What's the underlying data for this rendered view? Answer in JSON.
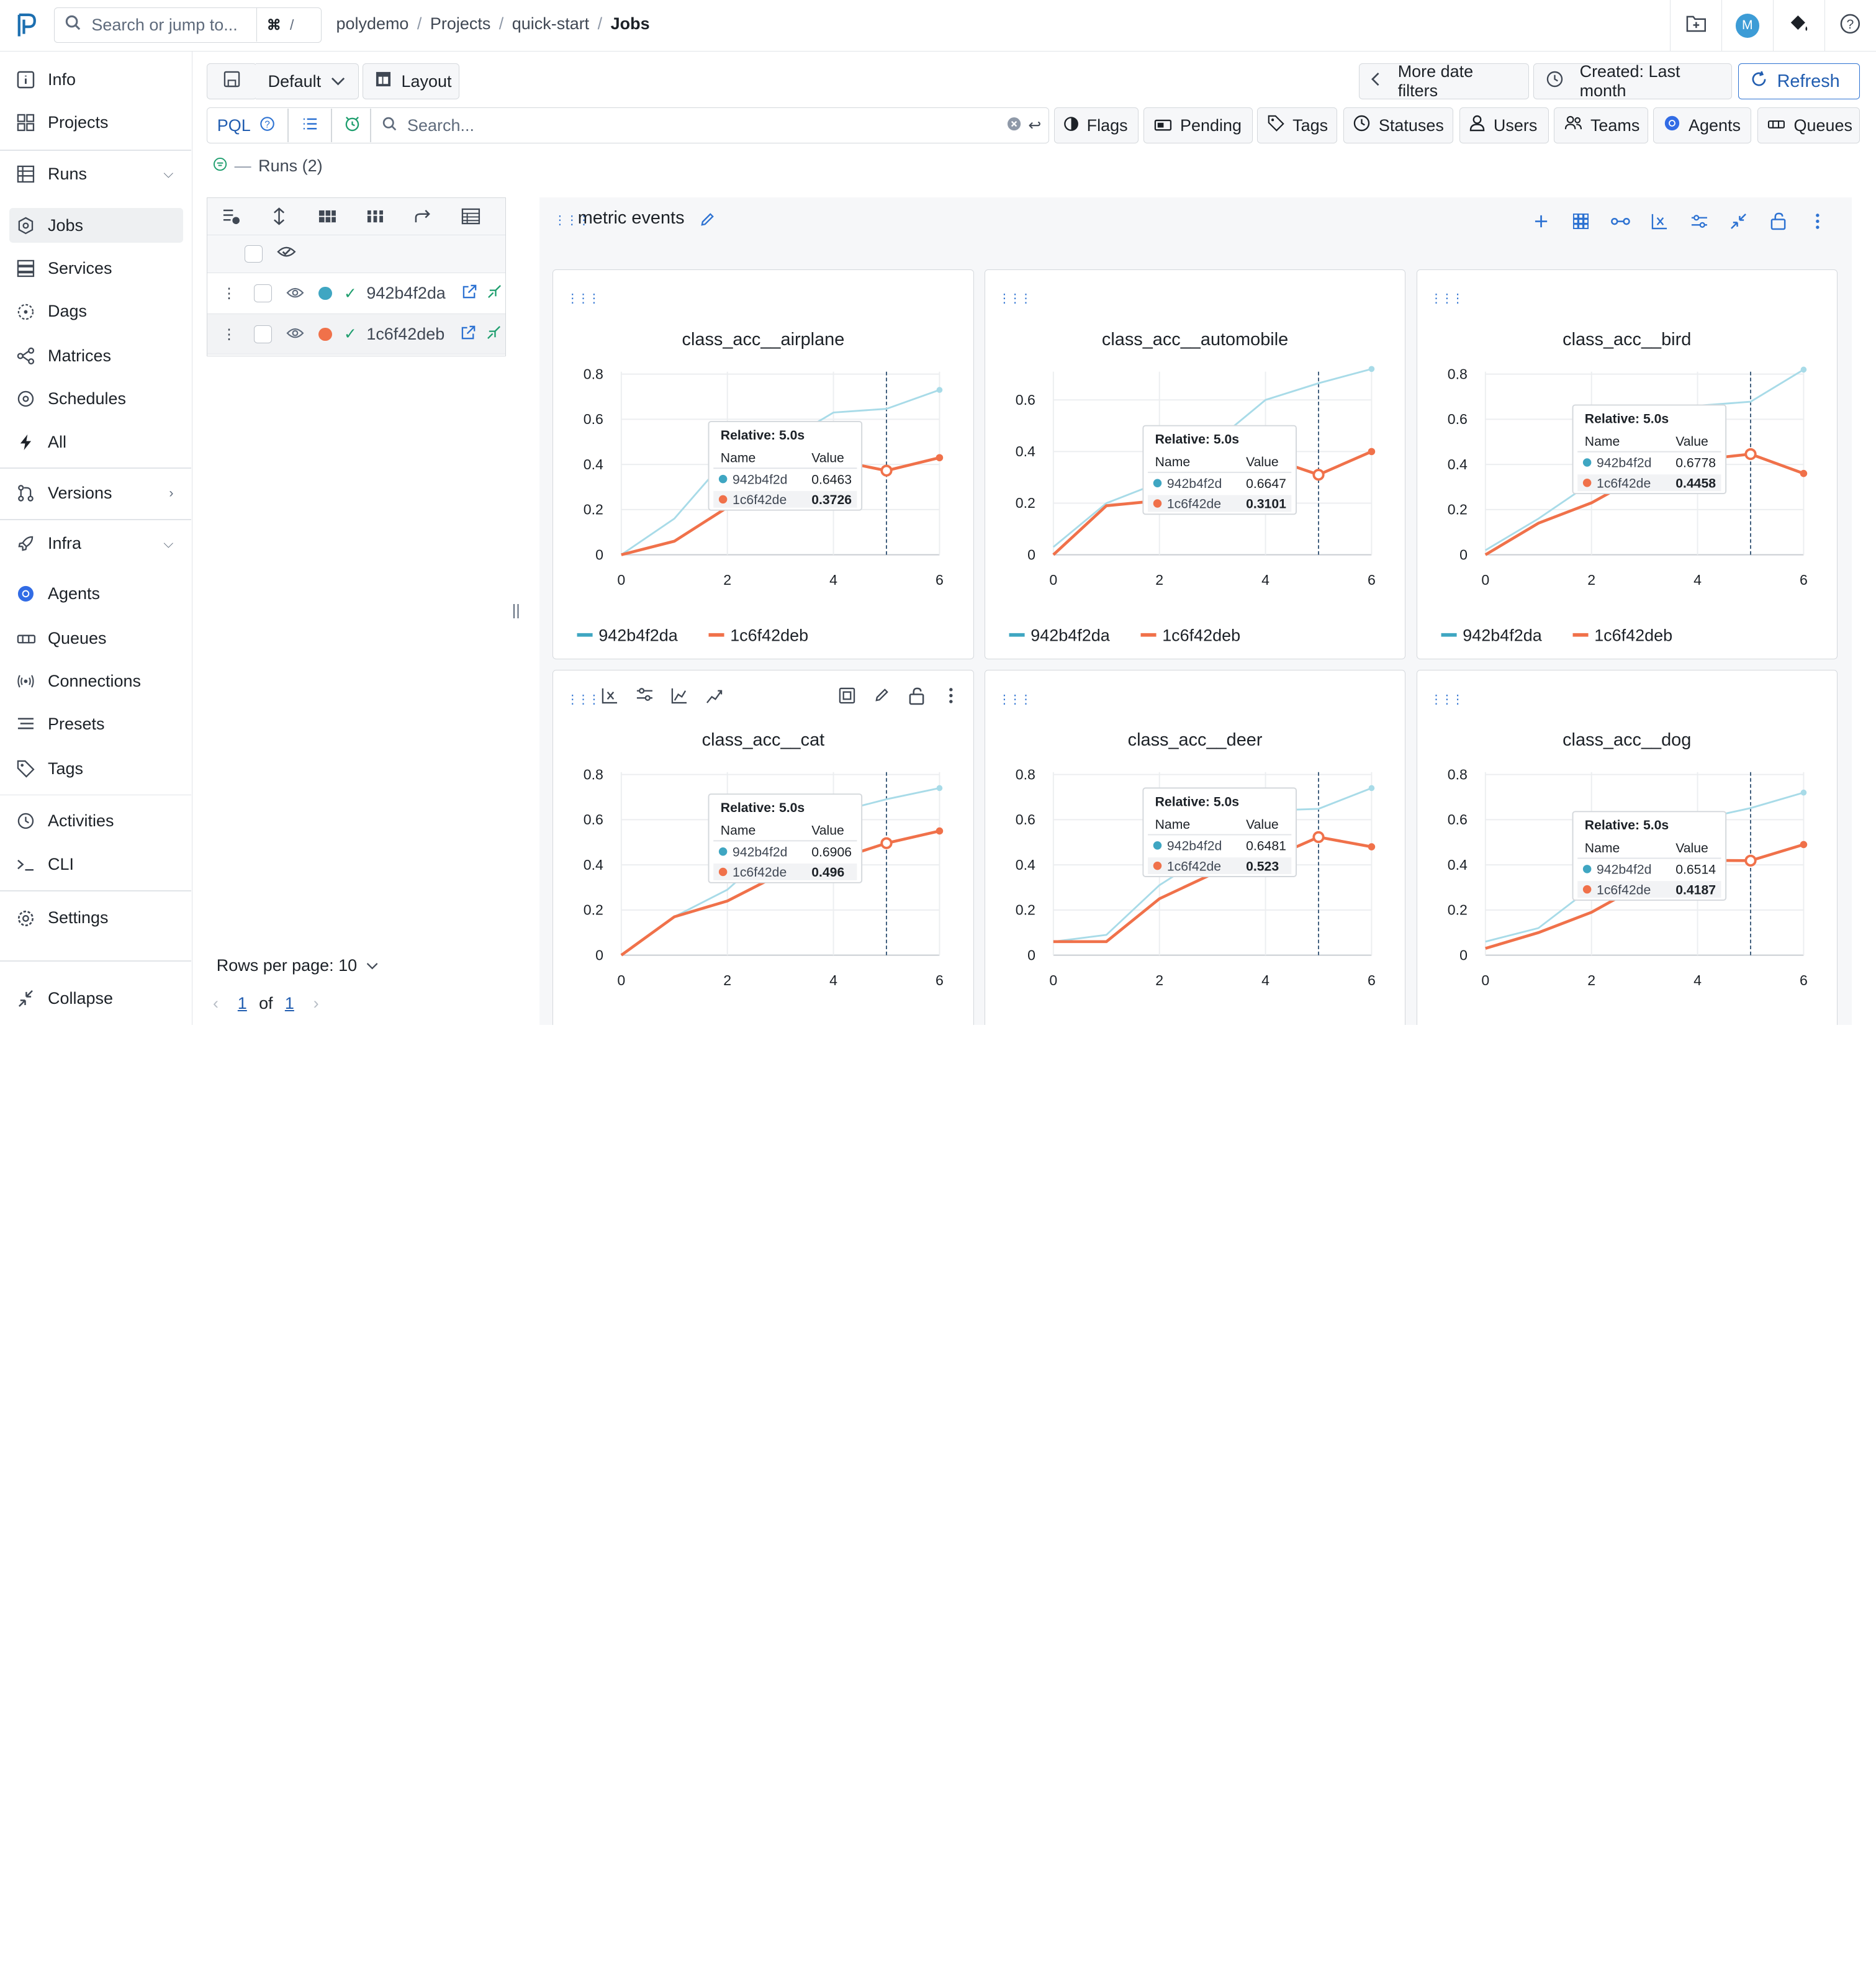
{
  "topbar": {
    "search_placeholder": "Search or jump to...",
    "kbd": "⌘",
    "kbd2": "/",
    "breadcrumb": [
      "polydemo",
      "Projects",
      "quick-start",
      "Jobs"
    ],
    "avatar_initial": "M"
  },
  "sidebar": {
    "items": [
      {
        "label": "Info",
        "icon": "info-icon"
      },
      {
        "label": "Projects",
        "icon": "grid-icon"
      },
      {
        "label": "Runs",
        "icon": "table-icon"
      },
      {
        "label": "Jobs",
        "icon": "job-icon"
      },
      {
        "label": "Services",
        "icon": "services-icon"
      },
      {
        "label": "Dags",
        "icon": "dag-icon"
      },
      {
        "label": "Matrices",
        "icon": "matrix-icon"
      },
      {
        "label": "Schedules",
        "icon": "schedule-icon"
      },
      {
        "label": "All",
        "icon": "lightning-icon"
      },
      {
        "label": "Versions",
        "icon": "git-icon"
      },
      {
        "label": "Infra",
        "icon": "rocket-icon"
      },
      {
        "label": "Agents",
        "icon": "agent-icon"
      },
      {
        "label": "Queues",
        "icon": "queue-icon"
      },
      {
        "label": "Connections",
        "icon": "connections-icon"
      },
      {
        "label": "Presets",
        "icon": "presets-icon"
      },
      {
        "label": "Tags",
        "icon": "tag-icon"
      },
      {
        "label": "Activities",
        "icon": "history-icon"
      },
      {
        "label": "CLI",
        "icon": "terminal-icon"
      },
      {
        "label": "Settings",
        "icon": "settings-icon"
      },
      {
        "label": "Collapse",
        "icon": "collapse-icon"
      }
    ]
  },
  "header": {
    "default_label": "Default",
    "layout_label": "Layout",
    "more_date_filters": "More date filters",
    "created_filter": "Created: Last month",
    "refresh": "Refresh"
  },
  "filters": {
    "pql": "PQL",
    "search_placeholder": "Search...",
    "buttons": [
      "Flags",
      "Pending",
      "Tags",
      "Statuses",
      "Users",
      "Teams",
      "Agents",
      "Queues"
    ]
  },
  "runs": {
    "label": "Runs (2)",
    "rows": [
      {
        "uuid": "942b4f2da",
        "color": "#3fa6c2"
      },
      {
        "uuid": "1c6f42deb",
        "color": "#f0714a"
      }
    ],
    "rows_per_page": "Rows per page: 10",
    "page": "1",
    "of": "of",
    "total_pages": "1"
  },
  "dashboard": {
    "title": "metric events"
  },
  "colors": {
    "series1": "#a8dbe8",
    "series1_dot": "#3fa6c2",
    "series2": "#f0714a",
    "accent": "#2d72d2"
  },
  "chart_data": [
    {
      "type": "line",
      "title": "class_acc__airplane",
      "x": [
        0,
        1,
        2,
        3,
        4,
        5,
        6
      ],
      "ylim": [
        0,
        0.8
      ],
      "yticks": [
        0,
        0.2,
        0.4,
        0.6,
        0.8
      ],
      "xticks": [
        0,
        2,
        4,
        6
      ],
      "series": [
        {
          "name": "942b4f2da",
          "values": [
            0.0,
            0.16,
            0.43,
            0.49,
            0.63,
            0.6463,
            0.73
          ]
        },
        {
          "name": "1c6f42deb",
          "values": [
            0.0,
            0.06,
            0.21,
            0.36,
            0.42,
            0.3726,
            0.43
          ]
        }
      ],
      "tooltip": {
        "header": "Relative: 5.0s",
        "col1": "Name",
        "col2": "Value",
        "rows": [
          {
            "name": "942b4f2d",
            "value": "0.6463"
          },
          {
            "name": "1c6f42de",
            "value": "0.3726"
          }
        ]
      }
    },
    {
      "type": "line",
      "title": "class_acc__automobile",
      "x": [
        0,
        1,
        2,
        3,
        4,
        5,
        6
      ],
      "ylim": [
        0,
        0.7
      ],
      "yticks": [
        0,
        0.2,
        0.4,
        0.6
      ],
      "xticks": [
        0,
        2,
        4,
        6
      ],
      "series": [
        {
          "name": "942b4f2da",
          "values": [
            0.03,
            0.2,
            0.28,
            0.43,
            0.6,
            0.6647,
            0.72
          ]
        },
        {
          "name": "1c6f42deb",
          "values": [
            0.0,
            0.19,
            0.21,
            0.31,
            0.38,
            0.3101,
            0.4
          ]
        }
      ],
      "tooltip": {
        "header": "Relative: 5.0s",
        "col1": "Name",
        "col2": "Value",
        "rows": [
          {
            "name": "942b4f2d",
            "value": "0.6647"
          },
          {
            "name": "1c6f42de",
            "value": "0.3101"
          }
        ]
      }
    },
    {
      "type": "line",
      "title": "class_acc__bird",
      "x": [
        0,
        1,
        2,
        3,
        4,
        5,
        6
      ],
      "ylim": [
        0,
        0.8
      ],
      "yticks": [
        0,
        0.2,
        0.4,
        0.6,
        0.8
      ],
      "xticks": [
        0,
        2,
        4,
        6
      ],
      "series": [
        {
          "name": "942b4f2da",
          "values": [
            0.02,
            0.16,
            0.32,
            0.5,
            0.66,
            0.6778,
            0.82
          ]
        },
        {
          "name": "1c6f42deb",
          "values": [
            0.0,
            0.14,
            0.23,
            0.36,
            0.42,
            0.4458,
            0.36
          ]
        }
      ],
      "tooltip": {
        "header": "Relative: 5.0s",
        "col1": "Name",
        "col2": "Value",
        "rows": [
          {
            "name": "942b4f2d",
            "value": "0.6778"
          },
          {
            "name": "1c6f42de",
            "value": "0.4458"
          }
        ]
      }
    },
    {
      "type": "line",
      "title": "class_acc__cat",
      "x": [
        0,
        1,
        2,
        3,
        4,
        5,
        6
      ],
      "ylim": [
        0,
        0.8
      ],
      "yticks": [
        0,
        0.2,
        0.4,
        0.6,
        0.8
      ],
      "xticks": [
        0,
        2,
        4,
        6
      ],
      "series": [
        {
          "name": "942b4f2da",
          "values": [
            0.0,
            0.17,
            0.29,
            0.5,
            0.63,
            0.6906,
            0.74
          ]
        },
        {
          "name": "1c6f42deb",
          "values": [
            0.0,
            0.17,
            0.24,
            0.36,
            0.42,
            0.496,
            0.55
          ]
        }
      ],
      "tooltip": {
        "header": "Relative: 5.0s",
        "col1": "Name",
        "col2": "Value",
        "rows": [
          {
            "name": "942b4f2d",
            "value": "0.6906"
          },
          {
            "name": "1c6f42de",
            "value": "0.496"
          }
        ]
      }
    },
    {
      "type": "line",
      "title": "class_acc__deer",
      "x": [
        0,
        1,
        2,
        3,
        4,
        5,
        6
      ],
      "ylim": [
        0,
        0.8
      ],
      "yticks": [
        0,
        0.2,
        0.4,
        0.6,
        0.8
      ],
      "xticks": [
        0,
        2,
        4,
        6
      ],
      "series": [
        {
          "name": "942b4f2da",
          "values": [
            0.06,
            0.09,
            0.31,
            0.46,
            0.64,
            0.6481,
            0.74
          ]
        },
        {
          "name": "1c6f42deb",
          "values": [
            0.06,
            0.06,
            0.25,
            0.36,
            0.42,
            0.523,
            0.48
          ]
        }
      ],
      "tooltip": {
        "header": "Relative: 5.0s",
        "col1": "Name",
        "col2": "Value",
        "rows": [
          {
            "name": "942b4f2d",
            "value": "0.6481"
          },
          {
            "name": "1c6f42de",
            "value": "0.523"
          }
        ]
      }
    },
    {
      "type": "line",
      "title": "class_acc__dog",
      "x": [
        0,
        1,
        2,
        3,
        4,
        5,
        6
      ],
      "ylim": [
        0,
        0.8
      ],
      "yticks": [
        0,
        0.2,
        0.4,
        0.6,
        0.8
      ],
      "xticks": [
        0,
        2,
        4,
        6
      ],
      "series": [
        {
          "name": "942b4f2da",
          "values": [
            0.06,
            0.12,
            0.3,
            0.46,
            0.6,
            0.6514,
            0.72
          ]
        },
        {
          "name": "1c6f42deb",
          "values": [
            0.03,
            0.1,
            0.19,
            0.32,
            0.42,
            0.4187,
            0.49
          ]
        }
      ],
      "tooltip": {
        "header": "Relative: 5.0s",
        "col1": "Name",
        "col2": "Value",
        "rows": [
          {
            "name": "942b4f2d",
            "value": "0.6514"
          },
          {
            "name": "1c6f42de",
            "value": "0.4187"
          }
        ]
      }
    }
  ]
}
